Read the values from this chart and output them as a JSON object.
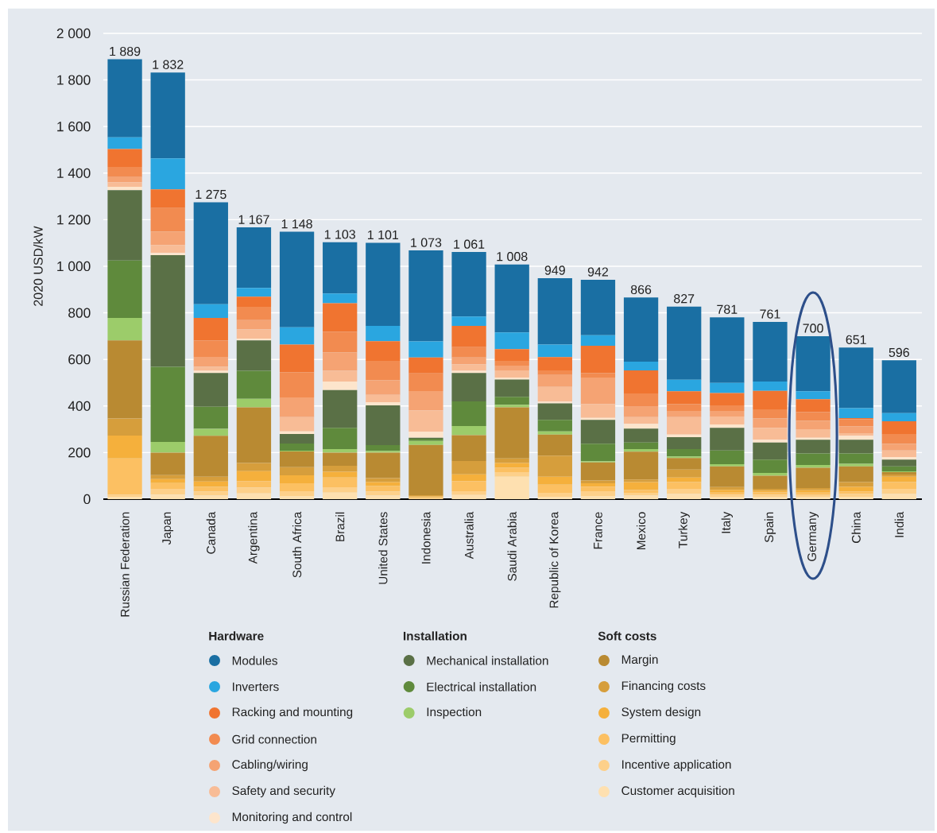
{
  "chart_data": {
    "type": "bar",
    "stacked": true,
    "ylabel": "2020 USD/kW",
    "categories": [
      "Russian Federation",
      "Japan",
      "Canada",
      "Argentina",
      "South Africa",
      "Brazil",
      "United States",
      "Indonesia",
      "Australia",
      "Saudi Arabia",
      "Republic of Korea",
      "France",
      "Mexico",
      "Turkey",
      "Italy",
      "Spain",
      "Germany",
      "China",
      "India"
    ],
    "ylim": [
      0,
      2000
    ],
    "yticks": [
      0,
      200,
      400,
      600,
      800,
      {
        "value": 1000,
        "label": "1 000"
      },
      {
        "value": 1200,
        "label": "1 200"
      },
      {
        "value": 1400,
        "label": "1 400"
      },
      {
        "value": 1600,
        "label": "1 600"
      },
      {
        "value": 1800,
        "label": "1 800"
      },
      {
        "value": 2000,
        "label": "2 000"
      }
    ],
    "grid": "y",
    "legend": "bottom",
    "annotations": [
      "Hardware",
      "Installation",
      "Soft costs"
    ],
    "totals": [
      "1 889",
      "1 832",
      "1 275",
      "1 167",
      "1 148",
      "1 103",
      "1 101",
      "1 073",
      "1 061",
      "1 008",
      "949",
      "942",
      "866",
      "827",
      "781",
      "761",
      "700",
      "651",
      "596"
    ],
    "series": [
      {
        "name": "Customer acquisition",
        "color": "#fee0b0",
        "values": [
          10,
          20,
          15,
          25,
          14,
          28,
          15,
          null,
          18,
          96,
          10,
          14,
          15,
          22,
          10,
          10,
          10,
          10,
          22
        ]
      },
      {
        "name": "Incentive application",
        "color": "#fdd08a",
        "values": [
          10,
          24,
          18,
          25,
          20,
          23,
          18,
          4,
          16,
          20,
          17,
          20,
          12,
          22,
          10,
          10,
          8,
          12,
          22
        ]
      },
      {
        "name": "Permitting",
        "color": "#fcc062",
        "values": [
          155,
          25,
          20,
          28,
          34,
          42,
          23,
          4,
          44,
          19,
          35,
          20,
          12,
          29,
          8,
          9,
          10,
          11,
          29
        ]
      },
      {
        "name": "System design",
        "color": "#f5b03c",
        "values": [
          98,
          17,
          23,
          42,
          34,
          25,
          17,
          4,
          29,
          20,
          34,
          14,
          34,
          20,
          12,
          8,
          10,
          20,
          23
        ]
      },
      {
        "name": "Financing costs",
        "color": "#d69e3c",
        "values": [
          73,
          17,
          20,
          35,
          35,
          25,
          17,
          5,
          57,
          20,
          91,
          12,
          11,
          34,
          12,
          7,
          10,
          20,
          10
        ]
      },
      {
        "name": "Margin",
        "color": "#b98a32",
        "values": [
          336,
          97,
          176,
          239,
          68,
          57,
          110,
          216,
          111,
          219,
          90,
          78,
          120,
          50,
          89,
          57,
          87,
          68,
          10
        ]
      },
      {
        "name": "Inspection",
        "color": "#9ccc6a",
        "values": [
          96,
          46,
          30,
          37,
          3,
          15,
          7,
          17,
          39,
          11,
          14,
          5,
          11,
          6,
          9,
          12,
          12,
          11,
          3
        ]
      },
      {
        "name": "Electrical installation",
        "color": "#5f8a3c",
        "values": [
          247,
          322,
          95,
          120,
          31,
          91,
          25,
          9,
          106,
          34,
          49,
          75,
          28,
          32,
          59,
          57,
          49,
          44,
          22
        ]
      },
      {
        "name": "Mechanical installation",
        "color": "#5a7046",
        "values": [
          302,
          480,
          145,
          131,
          41,
          162,
          171,
          5,
          122,
          75,
          71,
          102,
          60,
          51,
          97,
          73,
          59,
          59,
          29
        ]
      },
      {
        "name": "Monitoring and control",
        "color": "#fde5cc",
        "values": [
          14,
          9,
          9,
          7,
          11,
          37,
          13,
          26,
          9,
          8,
          8,
          9,
          20,
          11,
          15,
          12,
          9,
          17,
          11
        ]
      },
      {
        "name": "Safety and security",
        "color": "#f8bc96",
        "values": [
          20,
          34,
          17,
          40,
          61,
          46,
          32,
          91,
          28,
          31,
          63,
          60,
          29,
          75,
          34,
          51,
          36,
          11,
          28
        ]
      },
      {
        "name": "Cabling/wiring",
        "color": "#f5a373",
        "values": [
          22,
          57,
          43,
          40,
          85,
          79,
          63,
          83,
          29,
          20,
          51,
          113,
          45,
          27,
          24,
          40,
          37,
          30,
          29
        ]
      },
      {
        "name": "Grid connection",
        "color": "#f28b50",
        "values": [
          44,
          102,
          71,
          57,
          108,
          89,
          83,
          76,
          45,
          21,
          20,
          20,
          57,
          30,
          24,
          40,
          37,
          30,
          42
        ]
      },
      {
        "name": "Racking and mounting",
        "color": "#f07430",
        "values": [
          76,
          80,
          96,
          43,
          119,
          122,
          84,
          68,
          91,
          50,
          57,
          117,
          99,
          54,
          53,
          79,
          55,
          5,
          54
        ]
      },
      {
        "name": "Inverters",
        "color": "#2aa6e0",
        "values": [
          51,
          133,
          59,
          38,
          74,
          42,
          66,
          69,
          40,
          72,
          54,
          45,
          37,
          50,
          43,
          40,
          34,
          43,
          35
        ]
      },
      {
        "name": "Modules",
        "color": "#1a6fa3",
        "values": [
          335,
          369,
          438,
          260,
          410,
          220,
          357,
          391,
          277,
          292,
          285,
          238,
          276,
          314,
          282,
          256,
          237,
          260,
          227
        ]
      }
    ]
  }
}
